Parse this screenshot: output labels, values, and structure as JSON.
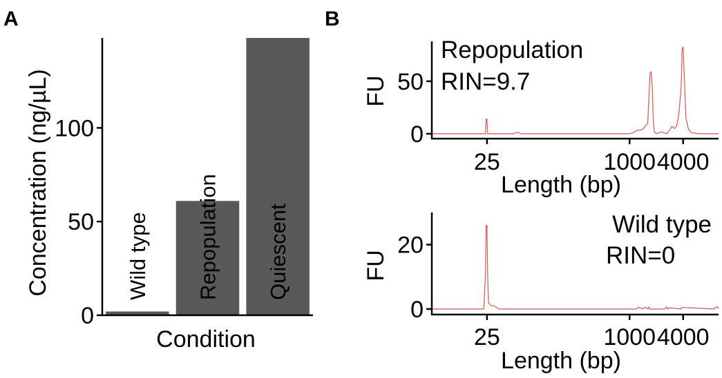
{
  "panels": {
    "a": "A",
    "b": "B"
  },
  "chart_data": [
    {
      "type": "bar",
      "panel": "A",
      "categories": [
        "Wild type",
        "Repopulation",
        "Quiescent"
      ],
      "values": [
        2,
        61,
        148
      ],
      "xlabel": "Condition",
      "ylabel": "Concentration (ng/µL)",
      "ylim": [
        0,
        148
      ],
      "yticks": [
        0,
        50,
        100
      ],
      "bar_color": "#595959",
      "grid": false
    },
    {
      "type": "line",
      "panel": "B",
      "annotation": [
        "Repopulation",
        "RIN=9.7"
      ],
      "xlabel": "Length (bp)",
      "ylabel": "FU",
      "xscale": "log",
      "xticks": [
        25,
        1000,
        4000
      ],
      "xlim": [
        6,
        10000
      ],
      "yticks": [
        0,
        50
      ],
      "ylim": [
        -4,
        88
      ],
      "line_color": "#d9534f",
      "series": [
        {
          "x": [
            6,
            24,
            24.5,
            25,
            25.5,
            26,
            50,
            52,
            58,
            60,
            1000,
            1100,
            1200,
            1400,
            1600,
            1700,
            1750,
            1800,
            1850,
            1900,
            2000,
            2300,
            2400,
            2600,
            2800,
            3000,
            3200,
            3400,
            3600,
            3800,
            3900,
            4000,
            4100,
            4300,
            4600,
            5000,
            6000,
            10000
          ],
          "y": [
            0,
            0,
            14,
            14,
            0,
            0,
            0,
            1,
            1,
            0,
            0,
            1,
            3,
            4,
            10,
            58,
            59,
            45,
            12,
            2,
            0,
            2,
            1,
            0,
            3,
            7,
            5,
            8,
            20,
            45,
            80,
            83,
            60,
            15,
            4,
            1,
            0,
            0
          ]
        }
      ]
    },
    {
      "type": "line",
      "panel": "B",
      "annotation": [
        "Wild type",
        "RIN=0"
      ],
      "xlabel": "Length (bp)",
      "ylabel": "FU",
      "xscale": "log",
      "xticks": [
        25,
        1000,
        4000
      ],
      "xlim": [
        6,
        10000
      ],
      "yticks": [
        0,
        20
      ],
      "ylim": [
        -1.5,
        30
      ],
      "line_color": "#d9534f",
      "series": [
        {
          "x": [
            6,
            23,
            24,
            24.5,
            25,
            25.5,
            26,
            28,
            30,
            32,
            34,
            1200,
            1250,
            1400,
            1500,
            1600,
            1650,
            1700,
            2500,
            2600,
            2700,
            2800,
            3800,
            3900,
            9000,
            9200,
            9800,
            10000
          ],
          "y": [
            0,
            0,
            10,
            26,
            26,
            10,
            2,
            1,
            1,
            0.5,
            0,
            0,
            0.6,
            0,
            0.6,
            0,
            0.6,
            0,
            0,
            0.6,
            0,
            0.4,
            0,
            0.5,
            0,
            0.6,
            0.6,
            0
          ]
        }
      ]
    }
  ]
}
